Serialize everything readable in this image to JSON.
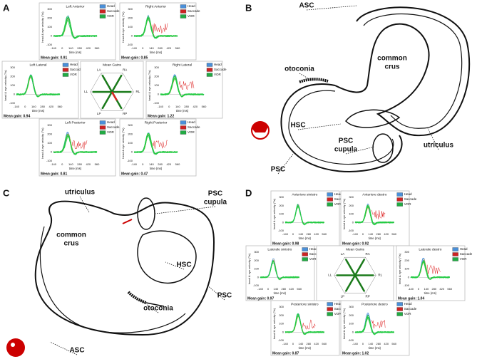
{
  "panel_a": {
    "letter": "A",
    "axes": {
      "ylabel": "head & eye velocity (°/s)",
      "xlabel": "time (ms)",
      "yticks": [
        "300",
        "200",
        "100",
        "0",
        "-100"
      ],
      "xticks": [
        "-140",
        "0",
        "140",
        "280",
        "420",
        "560"
      ]
    },
    "legend": [
      "Head",
      "Saccade",
      "VOR"
    ],
    "plots": [
      {
        "title": "Left Anterior",
        "gain": "Mean gain: 0.91"
      },
      {
        "title": "Right Anterior",
        "gain": "Mean gain: 0.85"
      },
      {
        "title": "Left Lateral",
        "gain": "Mean gain: 0.94"
      },
      {
        "title": "Right Lateral",
        "gain": "Mean gain: 1.22"
      },
      {
        "title": "Left Posterior",
        "gain": "Mean gain: 0.81"
      },
      {
        "title": "Right Posterior",
        "gain": "Mean gain: 0.47"
      }
    ],
    "polar": {
      "title": "Mean Gains",
      "labels": [
        "LA",
        "RA",
        "LL",
        "RL",
        "LP",
        "RP"
      ]
    }
  },
  "panel_b": {
    "letter": "B",
    "labels": [
      {
        "text": [
          "ASC"
        ]
      },
      {
        "text": [
          "common",
          "crus"
        ]
      },
      {
        "text": [
          "otoconia"
        ]
      },
      {
        "text": [
          "HSC"
        ]
      },
      {
        "text": [
          "PSC",
          "cupula"
        ]
      },
      {
        "text": [
          "utriculus"
        ]
      },
      {
        "text": [
          "PSC"
        ]
      }
    ]
  },
  "panel_c": {
    "letter": "C",
    "labels": [
      {
        "text": [
          "utriculus"
        ]
      },
      {
        "text": [
          "PSC",
          "cupula"
        ]
      },
      {
        "text": [
          "common",
          "crus"
        ]
      },
      {
        "text": [
          "HSC"
        ]
      },
      {
        "text": [
          "PSC"
        ]
      },
      {
        "text": [
          "otoconia"
        ]
      },
      {
        "text": [
          "ASC"
        ]
      }
    ]
  },
  "panel_d": {
    "letter": "D",
    "axes": {
      "ylabel": "head & eye velocity (°/s)",
      "xlabel": "time (ms)",
      "yticks": [
        "300",
        "200",
        "100",
        "0",
        "-100"
      ],
      "xticks": [
        "-140",
        "0",
        "140",
        "280",
        "420",
        "560"
      ]
    },
    "legend": [
      "Head",
      "Saccade",
      "VOR"
    ],
    "plots": [
      {
        "title": "Anteriore sinistro",
        "gain": "Mean gain: 0.98"
      },
      {
        "title": "Anteriore destro",
        "gain": "Mean gain: 0.92"
      },
      {
        "title": "Laterale sinistro",
        "gain": "Mean gain: 0.97"
      },
      {
        "title": "Laterale destro",
        "gain": "Mean gain: 1.04"
      },
      {
        "title": "Posteriore sinistro",
        "gain": "Mean gain: 0.87"
      },
      {
        "title": "Posteriore destro",
        "gain": "Mean gain: 1.02"
      }
    ],
    "polar": {
      "title": "Mean Gains",
      "labels": [
        "LA",
        "RA",
        "LL",
        "RL",
        "LP",
        "RP"
      ]
    }
  }
}
